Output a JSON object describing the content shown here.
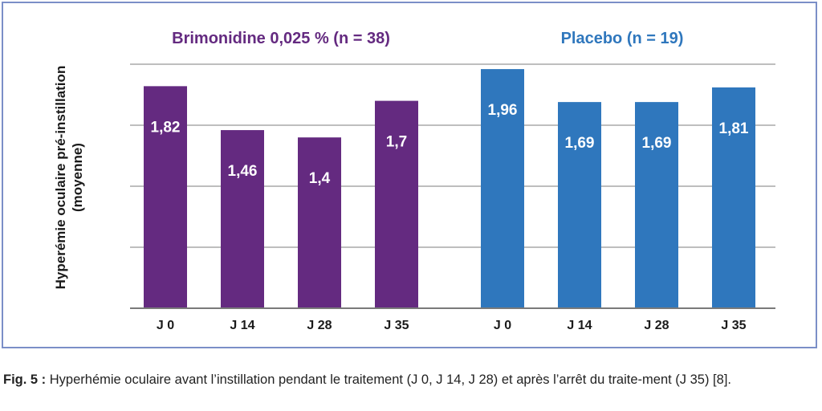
{
  "chart_data": {
    "type": "bar",
    "ylabel_lines": [
      "Hyperémie oculaire pré-instillation",
      "(moyenne)"
    ],
    "ylim": [
      0,
      2
    ],
    "grid": true,
    "groups": [
      {
        "title": "Brimonidine 0,025 % (n = 38)",
        "color": "#642a80",
        "categories": [
          "J 0",
          "J 14",
          "J 28",
          "J 35"
        ],
        "values": [
          1.82,
          1.46,
          1.4,
          1.7
        ],
        "labels": [
          "1,82",
          "1,46",
          "1,4",
          "1,7"
        ]
      },
      {
        "title": "Placebo (n = 19)",
        "color": "#2f77bd",
        "categories": [
          "J 0",
          "J 14",
          "J 28",
          "J 35"
        ],
        "values": [
          1.96,
          1.69,
          1.69,
          1.81
        ],
        "labels": [
          "1,96",
          "1,69",
          "1,69",
          "1,81"
        ]
      }
    ]
  },
  "caption": {
    "label": "Fig. 5 :",
    "text": " Hyperhémie oculaire avant l’instillation pendant le traitement (J 0, J 14, J 28) et après l’arrêt du traite-ment (J 35) [8]."
  }
}
